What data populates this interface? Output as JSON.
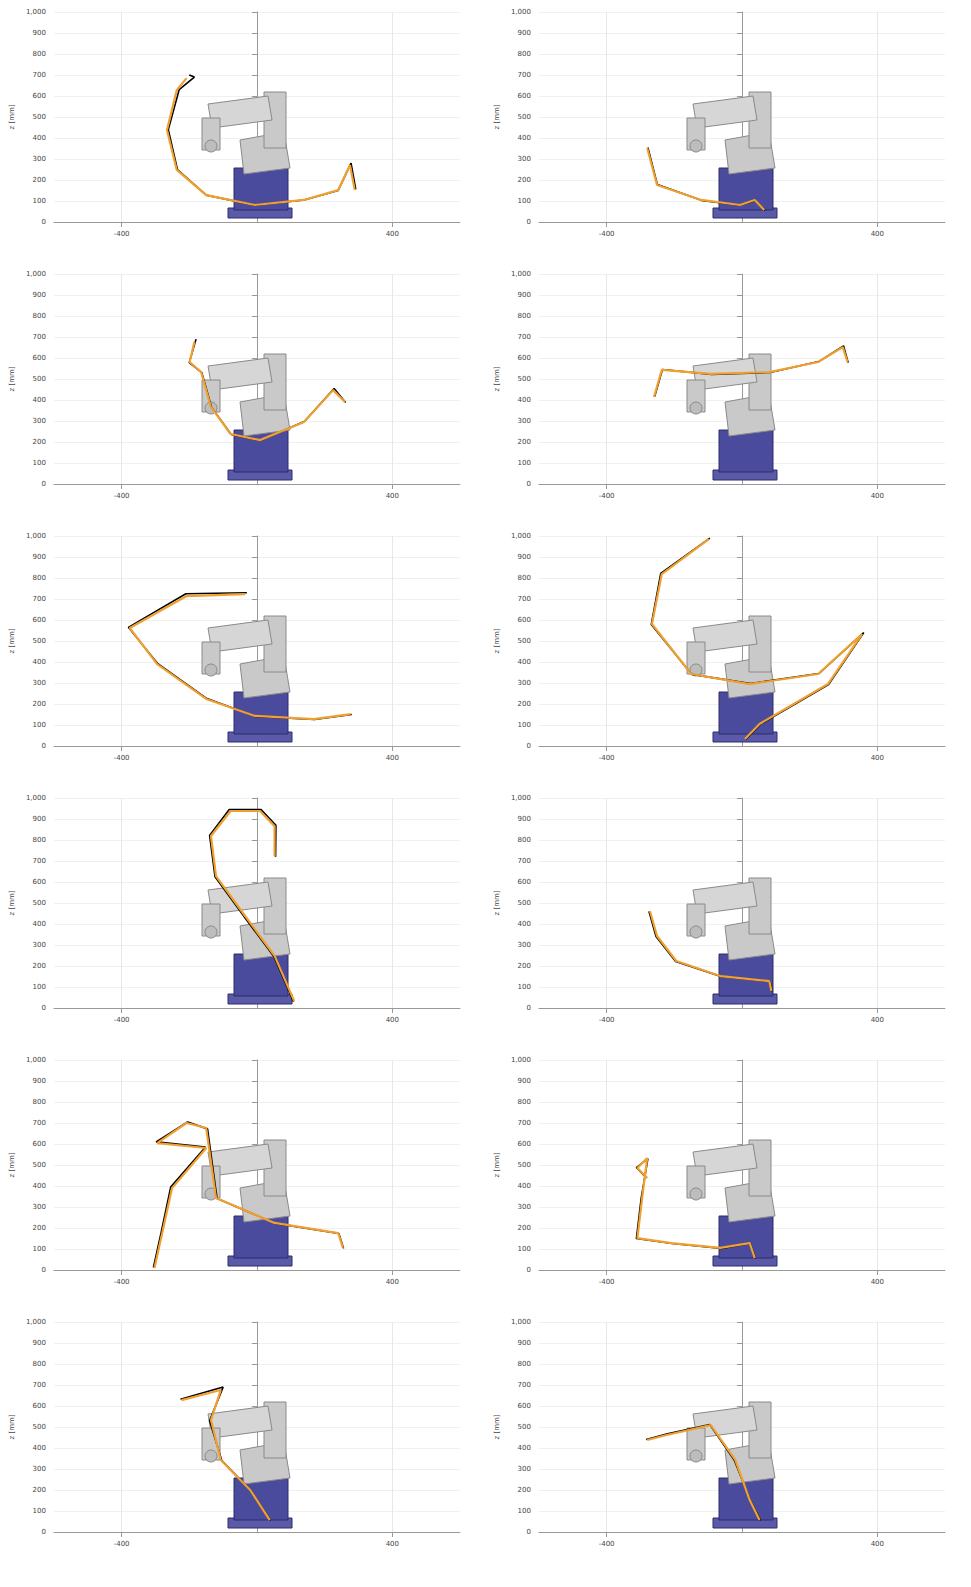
{
  "chart_data": [
    {
      "type": "line",
      "ylabel": "z [mm]",
      "ylim": [
        0,
        1000
      ],
      "yticks": [
        0,
        100,
        200,
        300,
        400,
        500,
        600,
        700,
        800,
        900,
        1000
      ],
      "xlim": [
        -600,
        600
      ],
      "xticks": [
        -400,
        400
      ],
      "grid": true,
      "series": [
        {
          "color": "#000000",
          "x": [
            -200,
            -185,
            -230,
            -262,
            -235,
            -150,
            -6,
            139,
            240,
            278,
            292
          ],
          "values": [
            700,
            690,
            630,
            440,
            250,
            128,
            80,
            105,
            150,
            280,
            155
          ]
        },
        {
          "color": "#f0a030",
          "x": [
            -208,
            -237,
            -266,
            -237,
            -150,
            -6,
            139,
            240,
            275,
            289
          ],
          "values": [
            685,
            628,
            438,
            248,
            128,
            81,
            105,
            152,
            271,
            152
          ]
        }
      ]
    },
    {
      "type": "line",
      "ylabel": "z [mm]",
      "ylim": [
        0,
        1000
      ],
      "yticks": [
        0,
        100,
        200,
        300,
        400,
        500,
        600,
        700,
        800,
        900,
        1000
      ],
      "xlim": [
        -600,
        600
      ],
      "xticks": [
        -400,
        400
      ],
      "grid": true,
      "series": [
        {
          "color": "#000000",
          "x": [
            -278,
            -250,
            -120,
            -6,
            40,
            68
          ],
          "values": [
            355,
            178,
            103,
            80,
            103,
            55
          ]
        },
        {
          "color": "#f0a030",
          "x": [
            -280,
            -251,
            -121,
            -6,
            38,
            66
          ],
          "values": [
            352,
            176,
            105,
            81,
            105,
            57
          ]
        }
      ]
    },
    {
      "type": "line",
      "ylabel": "z [mm]",
      "ylim": [
        0,
        1000
      ],
      "yticks": [
        0,
        100,
        200,
        300,
        400,
        500,
        600,
        700,
        800,
        900,
        1000
      ],
      "xlim": [
        -600,
        600
      ],
      "xticks": [
        -400,
        400
      ],
      "grid": true,
      "series": [
        {
          "color": "#000000",
          "x": [
            -180,
            -200,
            -163,
            -134,
            -76,
            10,
            140,
            228,
            262
          ],
          "values": [
            690,
            578,
            530,
            365,
            236,
            207,
            298,
            455,
            388
          ]
        },
        {
          "color": "#f0a030",
          "x": [
            -185,
            -199,
            -165,
            -136,
            -78,
            9,
            139,
            225,
            260
          ],
          "values": [
            676,
            581,
            533,
            367,
            238,
            209,
            295,
            447,
            390
          ]
        }
      ]
    },
    {
      "type": "line",
      "ylabel": "z [mm]",
      "ylim": [
        0,
        1000
      ],
      "yticks": [
        0,
        100,
        200,
        300,
        400,
        500,
        600,
        700,
        800,
        900,
        1000
      ],
      "xlim": [
        -600,
        600
      ],
      "xticks": [
        -400,
        400
      ],
      "grid": true,
      "series": [
        {
          "color": "#000000",
          "x": [
            -258,
            -235,
            -90,
            83,
            227,
            300,
            314
          ],
          "values": [
            416,
            545,
            522,
            531,
            583,
            658,
            578
          ]
        },
        {
          "color": "#f0a030",
          "x": [
            -260,
            -237,
            -92,
            81,
            225,
            298,
            312
          ],
          "values": [
            414,
            543,
            524,
            533,
            581,
            652,
            581
          ]
        }
      ]
    },
    {
      "type": "line",
      "ylabel": "z [mm]",
      "ylim": [
        0,
        1000
      ],
      "yticks": [
        0,
        100,
        200,
        300,
        400,
        500,
        600,
        700,
        800,
        900,
        1000
      ],
      "xlim": [
        -600,
        600
      ],
      "xticks": [
        -400,
        400
      ],
      "grid": true,
      "series": [
        {
          "color": "#000000",
          "x": [
            -30,
            -210,
            -380,
            -293,
            -148,
            -4,
            170,
            280
          ],
          "values": [
            730,
            725,
            565,
            392,
            226,
            141,
            126,
            150
          ]
        },
        {
          "color": "#f0a030",
          "x": [
            -35,
            -208,
            -376,
            -295,
            -150,
            -6,
            168,
            277
          ],
          "values": [
            723,
            714,
            562,
            390,
            224,
            143,
            128,
            152
          ]
        }
      ]
    },
    {
      "type": "line",
      "ylabel": "z [mm]",
      "ylim": [
        0,
        1000
      ],
      "yticks": [
        0,
        100,
        200,
        300,
        400,
        500,
        600,
        700,
        800,
        900,
        1000
      ],
      "xlim": [
        -600,
        600
      ],
      "xticks": [
        -400,
        400
      ],
      "grid": true,
      "series": [
        {
          "color": "#000000",
          "x": [
            -95,
            -240,
            -268,
            -148,
            25,
            227,
            360,
            256,
            54,
            11
          ],
          "values": [
            990,
            822,
            579,
            341,
            297,
            345,
            540,
            293,
            103,
            31
          ]
        },
        {
          "color": "#f0a030",
          "x": [
            -98,
            -237,
            -266,
            -150,
            23,
            225,
            355,
            254,
            52,
            9
          ],
          "values": [
            985,
            819,
            581,
            343,
            295,
            343,
            533,
            295,
            105,
            33
          ]
        }
      ]
    },
    {
      "type": "line",
      "ylabel": "z [mm]",
      "ylim": [
        0,
        1000
      ],
      "yticks": [
        0,
        100,
        200,
        300,
        400,
        500,
        600,
        700,
        800,
        900,
        1000
      ],
      "xlim": [
        -600,
        600
      ],
      "xticks": [
        -400,
        400
      ],
      "grid": true,
      "series": [
        {
          "color": "#000000",
          "x": [
            55,
            56,
            12,
            -82,
            -140,
            -124,
            -38,
            50,
            108
          ],
          "values": [
            720,
            870,
            945,
            945,
            822,
            625,
            435,
            245,
            30
          ]
        },
        {
          "color": "#f0a030",
          "x": [
            52,
            52,
            9,
            -78,
            -136,
            -121,
            -35,
            52,
            110
          ],
          "values": [
            723,
            866,
            938,
            938,
            819,
            628,
            438,
            248,
            33
          ]
        }
      ]
    },
    {
      "type": "line",
      "ylabel": "z [mm]",
      "ylim": [
        0,
        1000
      ],
      "yticks": [
        0,
        100,
        200,
        300,
        400,
        500,
        600,
        700,
        800,
        900,
        1000
      ],
      "xlim": [
        -600,
        600
      ],
      "xticks": [
        -400,
        400
      ],
      "grid": true,
      "series": [
        {
          "color": "#000000",
          "x": [
            -275,
            -254,
            -196,
            -62,
            83,
            89
          ],
          "values": [
            460,
            340,
            222,
            150,
            126,
            79
          ]
        },
        {
          "color": "#f0a030",
          "x": [
            -272,
            -251,
            -194,
            -64,
            81,
            87
          ],
          "values": [
            462,
            343,
            224,
            152,
            128,
            81
          ]
        }
      ]
    },
    {
      "type": "line",
      "ylabel": "z [mm]",
      "ylim": [
        0,
        1000
      ],
      "yticks": [
        0,
        100,
        200,
        300,
        400,
        500,
        600,
        700,
        800,
        900,
        1000
      ],
      "xlim": [
        -600,
        600
      ],
      "xticks": [
        -400,
        400
      ],
      "grid": true,
      "series": [
        {
          "color": "#000000",
          "x": [
            -306,
            -283,
            -255,
            -152,
            -298,
            -205,
            -146,
            -118,
            55,
            242,
            256
          ],
          "values": [
            12,
            180,
            395,
            585,
            610,
            705,
            672,
            340,
            222,
            174,
            103
          ]
        },
        {
          "color": "#f0a030",
          "x": [
            -303,
            -280,
            -251,
            -150,
            -295,
            -208,
            -150,
            -121,
            52,
            240,
            254
          ],
          "values": [
            10,
            176,
            390,
            581,
            604,
            700,
            676,
            343,
            224,
            176,
            105
          ]
        }
      ]
    },
    {
      "type": "line",
      "ylabel": "z [mm]",
      "ylim": [
        0,
        1000
      ],
      "yticks": [
        0,
        100,
        200,
        300,
        400,
        500,
        600,
        700,
        800,
        900,
        1000
      ],
      "xlim": [
        -600,
        600
      ],
      "xticks": [
        -400,
        400
      ],
      "grid": true,
      "series": [
        {
          "color": "#000000",
          "x": [
            -283,
            -312,
            -278,
            -298,
            -312,
            -206,
            -60,
            25,
            40
          ],
          "values": [
            440,
            488,
            530,
            340,
            150,
            126,
            103,
            126,
            55
          ]
        },
        {
          "color": "#f0a030",
          "x": [
            -280,
            -309,
            -280,
            -295,
            -309,
            -208,
            -64,
            23,
            38
          ],
          "values": [
            438,
            486,
            533,
            343,
            152,
            128,
            105,
            128,
            57
          ]
        }
      ]
    },
    {
      "type": "line",
      "ylabel": "z [mm]",
      "ylim": [
        0,
        1000
      ],
      "yticks": [
        0,
        100,
        200,
        300,
        400,
        500,
        600,
        700,
        800,
        900,
        1000
      ],
      "xlim": [
        -600,
        600
      ],
      "xticks": [
        -400,
        400
      ],
      "grid": true,
      "series": [
        {
          "color": "#000000",
          "x": [
            -226,
            -100,
            -140,
            -104,
            -18,
            40
          ],
          "values": [
            632,
            690,
            530,
            340,
            197,
            55
          ]
        },
        {
          "color": "#f0a030",
          "x": [
            -223,
            -107,
            -136,
            -107,
            -20,
            38
          ],
          "values": [
            628,
            676,
            533,
            343,
            200,
            57
          ]
        }
      ]
    },
    {
      "type": "line",
      "ylabel": "z [mm]",
      "ylim": [
        0,
        1000
      ],
      "yticks": [
        0,
        100,
        200,
        300,
        400,
        500,
        600,
        700,
        800,
        900,
        1000
      ],
      "xlim": [
        -600,
        600
      ],
      "xticks": [
        -400,
        400
      ],
      "grid": true,
      "series": [
        {
          "color": "#000000",
          "x": [
            -283,
            -220,
            -95,
            -22,
            25,
            55
          ],
          "values": [
            440,
            468,
            512,
            340,
            150,
            55
          ]
        },
        {
          "color": "#f0a030",
          "x": [
            -280,
            -223,
            -92,
            -20,
            23,
            52
          ],
          "values": [
            438,
            462,
            509,
            343,
            152,
            57
          ]
        }
      ]
    }
  ]
}
